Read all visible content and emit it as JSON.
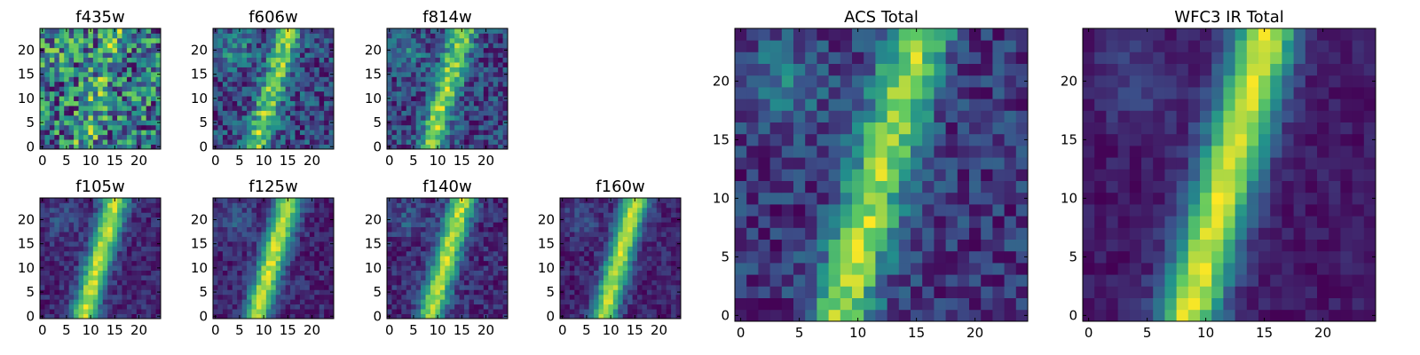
{
  "chart_data": [
    {
      "type": "heatmap",
      "title": "f435w",
      "noise": 0.4,
      "stripe_strength": 0.22,
      "blob_strength": 0.1,
      "seed": 11,
      "xlim": [
        0,
        24
      ],
      "ylim": [
        0,
        24
      ],
      "xticks": [
        0,
        5,
        10,
        15,
        20
      ],
      "yticks": [
        0,
        5,
        10,
        15,
        20
      ]
    },
    {
      "type": "heatmap",
      "title": "f606w",
      "noise": 0.22,
      "stripe_strength": 0.55,
      "blob_strength": 0.22,
      "seed": 23,
      "xlim": [
        0,
        24
      ],
      "ylim": [
        0,
        24
      ],
      "xticks": [
        0,
        5,
        10,
        15,
        20
      ],
      "yticks": [
        0,
        5,
        10,
        15,
        20
      ]
    },
    {
      "type": "heatmap",
      "title": "f814w",
      "noise": 0.22,
      "stripe_strength": 0.65,
      "blob_strength": 0.22,
      "seed": 37,
      "xlim": [
        0,
        24
      ],
      "ylim": [
        0,
        24
      ],
      "xticks": [
        0,
        5,
        10,
        15,
        20
      ],
      "yticks": [
        0,
        5,
        10,
        15,
        20
      ]
    },
    {
      "type": "heatmap",
      "title": "f105w",
      "noise": 0.12,
      "stripe_strength": 0.85,
      "blob_strength": 0.15,
      "seed": 41,
      "xlim": [
        0,
        24
      ],
      "ylim": [
        0,
        24
      ],
      "xticks": [
        0,
        5,
        10,
        15,
        20
      ],
      "yticks": [
        0,
        5,
        10,
        15,
        20
      ]
    },
    {
      "type": "heatmap",
      "title": "f125w",
      "noise": 0.12,
      "stripe_strength": 0.85,
      "blob_strength": 0.18,
      "seed": 53,
      "xlim": [
        0,
        24
      ],
      "ylim": [
        0,
        24
      ],
      "xticks": [
        0,
        5,
        10,
        15,
        20
      ],
      "yticks": [
        0,
        5,
        10,
        15,
        20
      ]
    },
    {
      "type": "heatmap",
      "title": "f140w",
      "noise": 0.14,
      "stripe_strength": 0.85,
      "blob_strength": 0.18,
      "seed": 67,
      "xlim": [
        0,
        24
      ],
      "ylim": [
        0,
        24
      ],
      "xticks": [
        0,
        5,
        10,
        15,
        20
      ],
      "yticks": [
        0,
        5,
        10,
        15,
        20
      ]
    },
    {
      "type": "heatmap",
      "title": "f160w",
      "noise": 0.12,
      "stripe_strength": 0.9,
      "blob_strength": 0.15,
      "seed": 79,
      "xlim": [
        0,
        24
      ],
      "ylim": [
        0,
        24
      ],
      "xticks": [
        0,
        5,
        10,
        15,
        20
      ],
      "yticks": [
        0,
        5,
        10,
        15,
        20
      ]
    },
    {
      "type": "heatmap",
      "title": "ACS Total",
      "noise": 0.18,
      "stripe_strength": 0.75,
      "blob_strength": 0.25,
      "seed": 97,
      "xlim": [
        0,
        24
      ],
      "ylim": [
        0,
        24
      ],
      "xticks": [
        0,
        5,
        10,
        15,
        20
      ],
      "yticks": [
        0,
        5,
        10,
        15,
        20
      ]
    },
    {
      "type": "heatmap",
      "title": "WFC3 IR Total",
      "noise": 0.08,
      "stripe_strength": 0.95,
      "blob_strength": 0.15,
      "seed": 113,
      "xlim": [
        0,
        24
      ],
      "ylim": [
        0,
        24
      ],
      "xticks": [
        0,
        5,
        10,
        15,
        20
      ],
      "yticks": [
        0,
        5,
        10,
        15,
        20
      ]
    }
  ],
  "colormap": [
    "#440154",
    "#3b528b",
    "#21918c",
    "#5ec962",
    "#fde725"
  ]
}
